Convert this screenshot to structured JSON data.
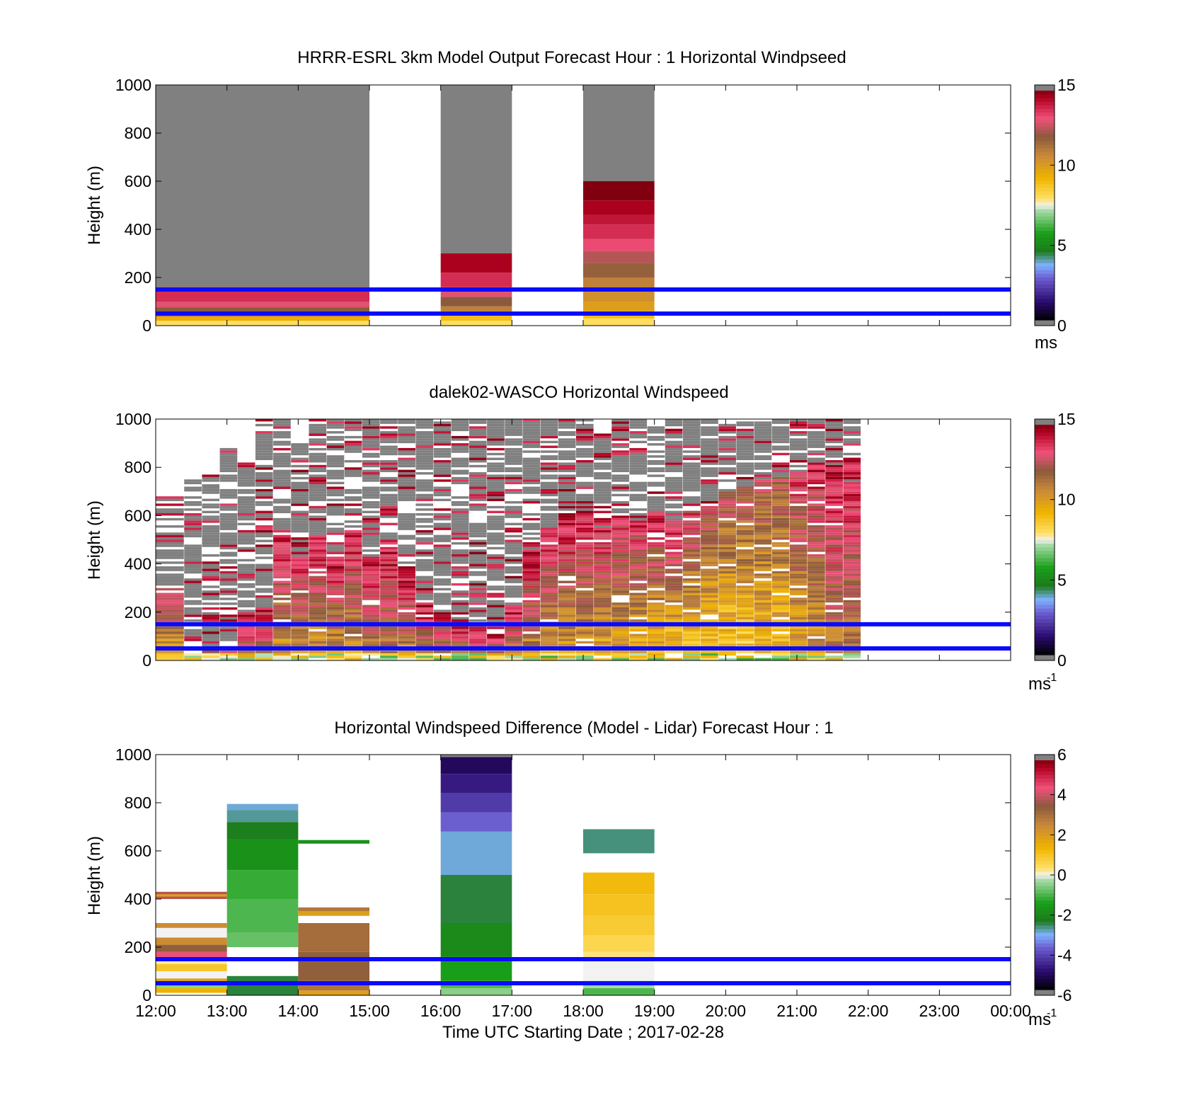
{
  "figure": {
    "x_axis_label": "Time UTC  Starting Date ; 2017-02-28",
    "x_ticks": [
      "12:00",
      "13:00",
      "14:00",
      "15:00",
      "16:00",
      "17:00",
      "18:00",
      "19:00",
      "20:00",
      "21:00",
      "22:00",
      "23:00",
      "00:00"
    ],
    "y_axis_label": "Height (m)",
    "y_ticks": [
      "0",
      "200",
      "400",
      "600",
      "800",
      "1000"
    ],
    "reference_line_color": "#0a0aff"
  },
  "colormap_stops": [
    {
      "v": 0.0,
      "c": "#000000"
    },
    {
      "v": 0.08,
      "c": "#2a0a6e"
    },
    {
      "v": 0.18,
      "c": "#6a5acd"
    },
    {
      "v": 0.24,
      "c": "#7fb2ff"
    },
    {
      "v": 0.3,
      "c": "#1c7a1c"
    },
    {
      "v": 0.38,
      "c": "#19a019"
    },
    {
      "v": 0.48,
      "c": "#a9dca9"
    },
    {
      "v": 0.5,
      "c": "#f2f2f2"
    },
    {
      "v": 0.53,
      "c": "#ffe066"
    },
    {
      "v": 0.62,
      "c": "#f0b400"
    },
    {
      "v": 0.72,
      "c": "#c8873a"
    },
    {
      "v": 0.8,
      "c": "#8b5a3c"
    },
    {
      "v": 0.88,
      "c": "#f0507a"
    },
    {
      "v": 0.97,
      "c": "#b00020"
    },
    {
      "v": 1.0,
      "c": "#800010"
    }
  ],
  "chart_data": [
    {
      "type": "heatmap",
      "title": "HRRR-ESRL 3km Model Output   Forecast Hour : 1 Horizontal Windpseed",
      "xlabel": "",
      "ylabel": "Height (m)",
      "x_range_hours": [
        12,
        24
      ],
      "ylim": [
        0,
        1000
      ],
      "reference_lines_m": [
        50,
        150
      ],
      "colorbar": {
        "min": 0,
        "max": 15,
        "ticks": [
          "0",
          "5",
          "10",
          "15"
        ],
        "unit": "ms",
        "unit_exp": ""
      },
      "columns": [
        {
          "t0": 12,
          "t1": 15,
          "segments": [
            [
              0,
              20,
              8
            ],
            [
              20,
              35,
              9.5
            ],
            [
              35,
              55,
              10.5
            ],
            [
              55,
              75,
              12
            ],
            [
              75,
              100,
              13
            ],
            [
              100,
              160,
              13.8
            ],
            [
              160,
              1000,
              null
            ]
          ]
        },
        {
          "t0": 16,
          "t1": 17,
          "segments": [
            [
              0,
              20,
              8
            ],
            [
              20,
              40,
              9
            ],
            [
              40,
              60,
              10
            ],
            [
              60,
              80,
              11
            ],
            [
              80,
              120,
              12
            ],
            [
              120,
              160,
              13
            ],
            [
              160,
              220,
              13.8
            ],
            [
              220,
              300,
              14.6
            ],
            [
              300,
              1000,
              null
            ]
          ]
        },
        {
          "t0": 18,
          "t1": 19,
          "segments": [
            [
              0,
              30,
              8
            ],
            [
              30,
              60,
              9
            ],
            [
              60,
              100,
              10
            ],
            [
              100,
              150,
              10.5
            ],
            [
              150,
              200,
              11
            ],
            [
              200,
              260,
              11.8
            ],
            [
              260,
              310,
              12.5
            ],
            [
              310,
              360,
              13.3
            ],
            [
              360,
              420,
              13.8
            ],
            [
              420,
              460,
              14.2
            ],
            [
              460,
              520,
              14.6
            ],
            [
              520,
              600,
              15
            ],
            [
              600,
              1000,
              null
            ]
          ]
        }
      ]
    },
    {
      "type": "heatmap",
      "title": "dalek02-WASCO  Horizontal Windspeed",
      "xlabel": "",
      "ylabel": "Height (m)",
      "x_range_hours": [
        12,
        24
      ],
      "ylim": [
        0,
        1000
      ],
      "reference_lines_m": [
        50,
        150
      ],
      "colorbar": {
        "min": 0,
        "max": 15,
        "ticks": [
          "0",
          "5",
          "10",
          "15"
        ],
        "unit": "ms",
        "unit_exp": "-1"
      },
      "columns": [
        {
          "t0": 12.0,
          "t1": 12.4,
          "top": 680,
          "valid_top": 300,
          "low": 9.5,
          "high": 13.5
        },
        {
          "t0": 12.4,
          "t1": 12.65,
          "top": 750,
          "valid_top": 40,
          "low": 11,
          "high": 13
        },
        {
          "t0": 12.65,
          "t1": 12.9,
          "top": 770,
          "valid_top": 40,
          "low": 11,
          "high": 13
        },
        {
          "t0": 12.9,
          "t1": 13.15,
          "top": 880,
          "valid_top": 40,
          "low": 11,
          "high": 13
        },
        {
          "t0": 13.15,
          "t1": 13.4,
          "top": 820,
          "valid_top": 180,
          "low": 12,
          "high": 14
        },
        {
          "t0": 13.4,
          "t1": 13.65,
          "top": 1000,
          "valid_top": 220,
          "low": 12,
          "high": 14
        },
        {
          "t0": 13.65,
          "t1": 13.9,
          "top": 1000,
          "valid_top": 520,
          "low": 10,
          "high": 14.5
        },
        {
          "t0": 13.9,
          "t1": 14.15,
          "top": 900,
          "valid_top": 430,
          "low": 10,
          "high": 14.5
        },
        {
          "t0": 14.15,
          "t1": 14.4,
          "top": 1000,
          "valid_top": 520,
          "low": 10,
          "high": 14.5
        },
        {
          "t0": 14.4,
          "t1": 14.65,
          "top": 1000,
          "valid_top": 420,
          "low": 10,
          "high": 14.5
        },
        {
          "t0": 14.65,
          "t1": 14.9,
          "top": 1000,
          "valid_top": 540,
          "low": 10,
          "high": 14.5
        },
        {
          "t0": 14.9,
          "t1": 15.15,
          "top": 1000,
          "valid_top": 420,
          "low": 11,
          "high": 14.5
        },
        {
          "t0": 15.15,
          "t1": 15.4,
          "top": 1000,
          "valid_top": 500,
          "low": 11,
          "high": 14.5
        },
        {
          "t0": 15.4,
          "t1": 15.65,
          "top": 1000,
          "valid_top": 380,
          "low": 11,
          "high": 14.5
        },
        {
          "t0": 15.65,
          "t1": 15.9,
          "top": 1000,
          "valid_top": 240,
          "low": 11,
          "high": 14.5
        },
        {
          "t0": 15.9,
          "t1": 16.15,
          "top": 1000,
          "valid_top": 210,
          "low": 11,
          "high": 14.5
        },
        {
          "t0": 16.15,
          "t1": 16.4,
          "top": 1000,
          "valid_top": 170,
          "low": 11,
          "high": 14.5
        },
        {
          "t0": 16.4,
          "t1": 16.65,
          "top": 1000,
          "valid_top": 140,
          "low": 11,
          "high": 14.5
        },
        {
          "t0": 16.65,
          "t1": 16.9,
          "top": 1000,
          "valid_top": 110,
          "low": 11,
          "high": 14.5
        },
        {
          "t0": 16.9,
          "t1": 17.15,
          "top": 1000,
          "valid_top": 230,
          "low": 11,
          "high": 14.5
        },
        {
          "t0": 17.15,
          "t1": 17.4,
          "top": 1000,
          "valid_top": 480,
          "low": 10.5,
          "high": 14.5
        },
        {
          "t0": 17.4,
          "t1": 17.65,
          "top": 1000,
          "valid_top": 560,
          "low": 10,
          "high": 14.5
        },
        {
          "t0": 17.65,
          "t1": 17.9,
          "top": 1000,
          "valid_top": 610,
          "low": 10,
          "high": 14.5
        },
        {
          "t0": 17.9,
          "t1": 18.15,
          "top": 1000,
          "valid_top": 610,
          "low": 10,
          "high": 14
        },
        {
          "t0": 18.15,
          "t1": 18.4,
          "top": 950,
          "valid_top": 550,
          "low": 9.5,
          "high": 14
        },
        {
          "t0": 18.4,
          "t1": 18.65,
          "top": 1000,
          "valid_top": 600,
          "low": 9.5,
          "high": 14
        },
        {
          "t0": 18.65,
          "t1": 18.9,
          "top": 1000,
          "valid_top": 580,
          "low": 9,
          "high": 14
        },
        {
          "t0": 18.9,
          "t1": 19.15,
          "top": 1000,
          "valid_top": 620,
          "low": 9,
          "high": 14
        },
        {
          "t0": 19.15,
          "t1": 19.4,
          "top": 1000,
          "valid_top": 580,
          "low": 8.5,
          "high": 14
        },
        {
          "t0": 19.4,
          "t1": 19.65,
          "top": 1000,
          "valid_top": 620,
          "low": 8.5,
          "high": 13.5
        },
        {
          "t0": 19.65,
          "t1": 19.9,
          "top": 1000,
          "valid_top": 640,
          "low": 8.5,
          "high": 13
        },
        {
          "t0": 19.9,
          "t1": 20.15,
          "top": 1000,
          "valid_top": 700,
          "low": 8.5,
          "high": 12.5
        },
        {
          "t0": 20.15,
          "t1": 20.4,
          "top": 1000,
          "valid_top": 720,
          "low": 8.5,
          "high": 12.5
        },
        {
          "t0": 20.4,
          "t1": 20.65,
          "top": 1000,
          "valid_top": 750,
          "low": 9,
          "high": 12.5
        },
        {
          "t0": 20.65,
          "t1": 20.9,
          "top": 1000,
          "valid_top": 760,
          "low": 9,
          "high": 12.5
        },
        {
          "t0": 20.9,
          "t1": 21.15,
          "top": 1000,
          "valid_top": 780,
          "low": 9.5,
          "high": 13.5
        },
        {
          "t0": 21.15,
          "t1": 21.4,
          "top": 1000,
          "valid_top": 820,
          "low": 10,
          "high": 14
        },
        {
          "t0": 21.4,
          "t1": 21.65,
          "top": 1000,
          "valid_top": 830,
          "low": 11,
          "high": 14.5
        },
        {
          "t0": 21.65,
          "t1": 21.9,
          "top": 1000,
          "valid_top": 860,
          "low": 11,
          "high": 14.5
        }
      ]
    },
    {
      "type": "heatmap",
      "title": "Horizontal Windspeed Difference (Model - Lidar) Forecast Hour : 1",
      "xlabel": "Time UTC  Starting Date ; 2017-02-28",
      "ylabel": "Height (m)",
      "x_range_hours": [
        12,
        24
      ],
      "ylim": [
        0,
        1000
      ],
      "reference_lines_m": [
        50,
        150
      ],
      "colorbar": {
        "min": -6,
        "max": 6,
        "ticks": [
          "-6",
          "-4",
          "-2",
          "0",
          "2",
          "4",
          "6"
        ],
        "unit": "ms",
        "unit_exp": "-1"
      },
      "columns": [
        {
          "t0": 12,
          "t1": 13,
          "segments": [
            [
              10,
              30,
              1.5
            ],
            [
              30,
              50,
              -0.5
            ],
            [
              50,
              70,
              2
            ],
            [
              70,
              100,
              0
            ],
            [
              100,
              130,
              1
            ],
            [
              130,
              150,
              0.2
            ],
            [
              150,
              180,
              4.5
            ],
            [
              180,
              210,
              3.5
            ],
            [
              210,
              240,
              2.5
            ],
            [
              240,
              280,
              0
            ],
            [
              280,
              300,
              2.5
            ],
            [
              400,
              430,
              4
            ],
            [
              410,
              420,
              2
            ]
          ]
        },
        {
          "t0": 13,
          "t1": 14,
          "segments": [
            [
              0,
              80,
              -2.5
            ],
            [
              200,
              260,
              -0.8
            ],
            [
              260,
              400,
              -1
            ],
            [
              400,
              520,
              -1.2
            ],
            [
              520,
              650,
              -1.8
            ],
            [
              650,
              720,
              -2.3
            ],
            [
              720,
              770,
              -2.8
            ],
            [
              770,
              795,
              -3
            ]
          ]
        },
        {
          "t0": 14,
          "t1": 15,
          "segments": [
            [
              0,
              20,
              2
            ],
            [
              20,
              60,
              3
            ],
            [
              60,
              180,
              3.5
            ],
            [
              180,
              300,
              3.2
            ],
            [
              330,
              350,
              2
            ],
            [
              350,
              365,
              3
            ],
            [
              630,
              645,
              -1.8
            ]
          ]
        },
        {
          "t0": 16,
          "t1": 17,
          "segments": [
            [
              0,
              30,
              -0.5
            ],
            [
              30,
              60,
              -1
            ],
            [
              60,
              160,
              -1.5
            ],
            [
              160,
              300,
              -2
            ],
            [
              300,
              500,
              -2.5
            ],
            [
              500,
              680,
              -3
            ],
            [
              680,
              760,
              -3.8
            ],
            [
              760,
              840,
              -4.3
            ],
            [
              840,
              920,
              -4.8
            ],
            [
              920,
              990,
              -5.2
            ],
            [
              990,
              1000,
              -6.3
            ]
          ]
        },
        {
          "t0": 18,
          "t1": 19,
          "segments": [
            [
              0,
              30,
              -1
            ],
            [
              30,
              60,
              -0.3
            ],
            [
              60,
              90,
              0
            ],
            [
              90,
              110,
              0
            ],
            [
              110,
              150,
              0
            ],
            [
              150,
              180,
              0.3
            ],
            [
              180,
              250,
              0.6
            ],
            [
              250,
              330,
              0.9
            ],
            [
              330,
              420,
              1.1
            ],
            [
              420,
              510,
              1.3
            ],
            [
              590,
              690,
              -2.7
            ]
          ]
        }
      ]
    }
  ]
}
